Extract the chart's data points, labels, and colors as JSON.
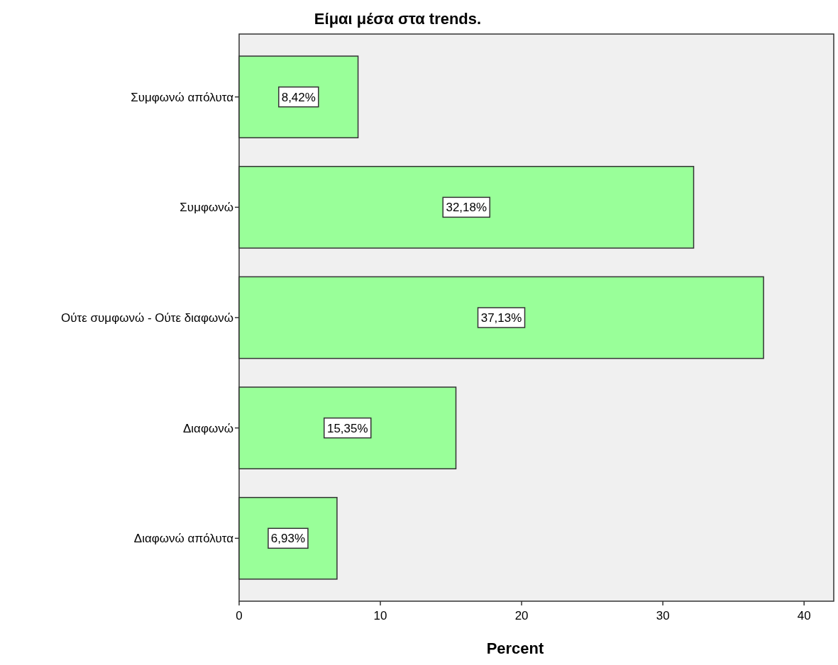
{
  "chart_data": {
    "type": "bar",
    "orientation": "horizontal",
    "title": "Είμαι μέσα στα trends.",
    "xlabel": "Percent",
    "categories": [
      "Συμφωνώ απόλυτα",
      "Συμφωνώ",
      "Ούτε συμφωνώ - Ούτε διαφωνώ",
      "Διαφωνώ",
      "Διαφωνώ απόλυτα"
    ],
    "values": [
      8.42,
      32.18,
      37.13,
      15.35,
      6.93
    ],
    "value_labels": [
      "8,42%",
      "32,18%",
      "37,13%",
      "15,35%",
      "6,93%"
    ],
    "color": "#99ff99",
    "xlim": [
      0,
      42.1
    ],
    "xticks": [
      0,
      10,
      20,
      30,
      40
    ],
    "grid": false
  }
}
